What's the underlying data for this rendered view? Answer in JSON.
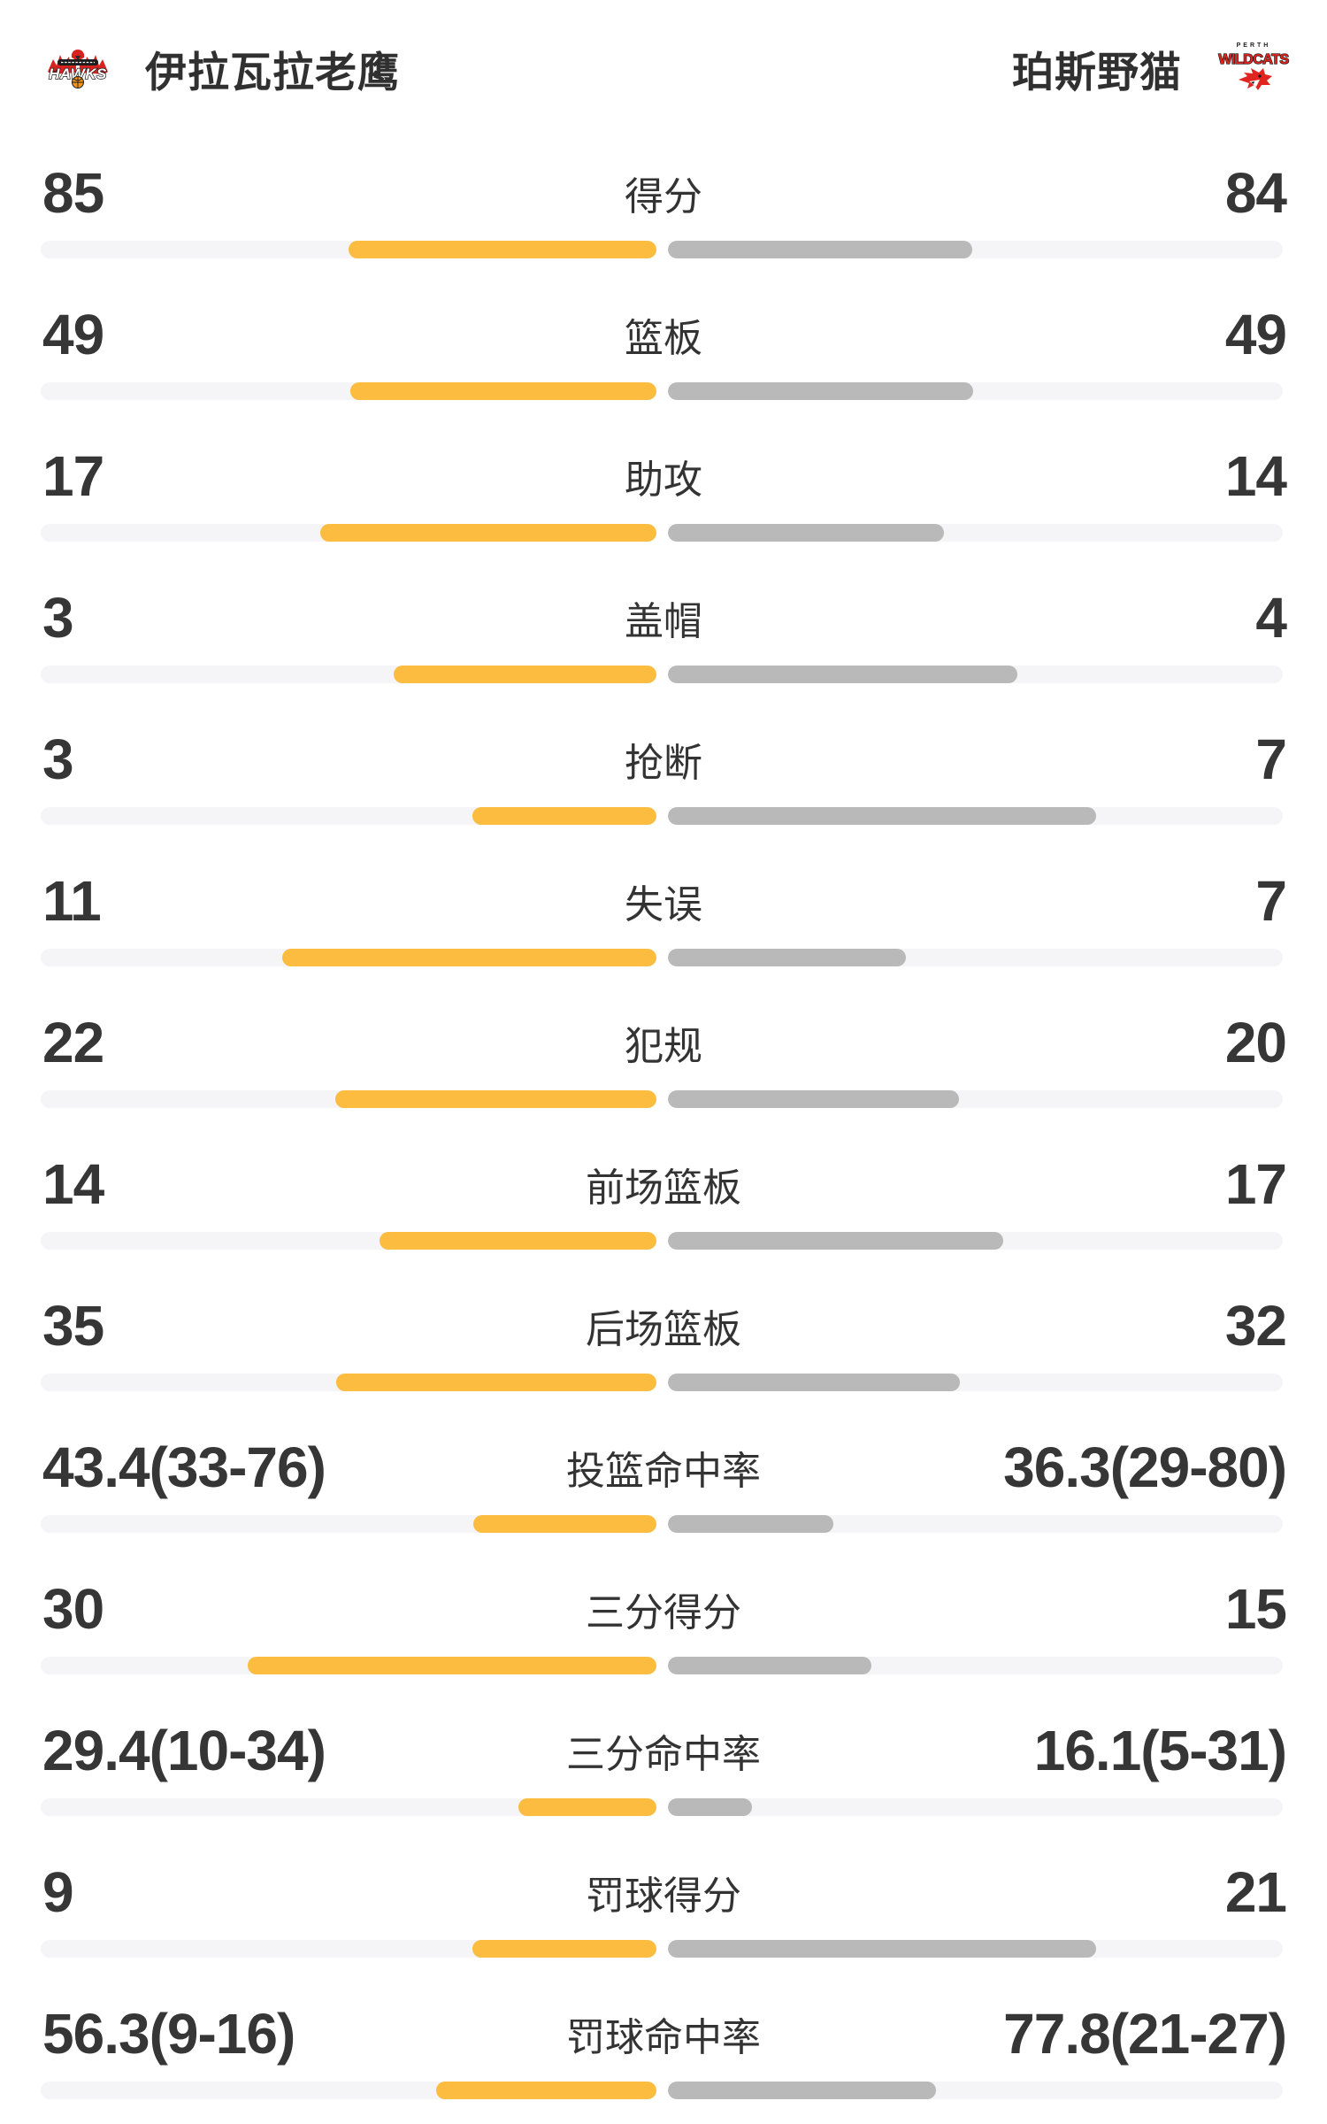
{
  "teams": {
    "home": {
      "name": "伊拉瓦拉老鹰",
      "bar_color": "#fbbc40"
    },
    "away": {
      "name": "珀斯野猫",
      "bar_color": "#b9b9b9"
    }
  },
  "logos": {
    "hawks": {
      "banner_text": "HAWKS"
    },
    "wildcats": {
      "top_text": "PERTH",
      "main_text": "WILDCATS"
    }
  },
  "colors": {
    "home_bar": "#fbbc40",
    "away_bar": "#b9b9b9",
    "bar_track": "#f5f5f7",
    "value_text": "#363636",
    "label_text": "#333333",
    "background": "#ffffff",
    "logo_red": "#dd2a26",
    "basketball_orange": "#f7941d"
  },
  "chart_data": {
    "type": "bar",
    "orientation": "horizontal-paired-comparison",
    "title": "",
    "grid": false,
    "legend_position": "top",
    "categories": [
      "得分",
      "篮板",
      "助攻",
      "盖帽",
      "抢断",
      "失误",
      "犯规",
      "前场篮板",
      "后场篮板",
      "投篮命中率",
      "三分得分",
      "三分命中率",
      "罚球得分",
      "罚球命中率"
    ],
    "series": [
      {
        "name": "伊拉瓦拉老鹰",
        "color": "#fbbc40",
        "values": [
          85,
          49,
          17,
          3,
          3,
          11,
          22,
          14,
          35,
          43.4,
          30,
          29.4,
          9,
          56.3
        ]
      },
      {
        "name": "珀斯野猫",
        "color": "#b9b9b9",
        "values": [
          84,
          49,
          14,
          4,
          7,
          7,
          20,
          17,
          32,
          36.3,
          15,
          16.1,
          21,
          77.8
        ]
      }
    ],
    "rows": [
      {
        "label": "得分",
        "home": {
          "display": "85",
          "value": 85
        },
        "away": {
          "display": "84",
          "value": 84
        },
        "bars": {
          "home_pct": 50.0,
          "away_pct": 49.5
        }
      },
      {
        "label": "篮板",
        "home": {
          "display": "49",
          "value": 49
        },
        "away": {
          "display": "49",
          "value": 49
        },
        "bars": {
          "home_pct": 49.7,
          "away_pct": 49.7
        }
      },
      {
        "label": "助攻",
        "home": {
          "display": "17",
          "value": 17
        },
        "away": {
          "display": "14",
          "value": 14
        },
        "bars": {
          "home_pct": 54.6,
          "away_pct": 45.0
        }
      },
      {
        "label": "盖帽",
        "home": {
          "display": "3",
          "value": 3
        },
        "away": {
          "display": "4",
          "value": 4
        },
        "bars": {
          "home_pct": 42.6,
          "away_pct": 56.9
        }
      },
      {
        "label": "抢断",
        "home": {
          "display": "3",
          "value": 3
        },
        "away": {
          "display": "7",
          "value": 7
        },
        "bars": {
          "home_pct": 29.9,
          "away_pct": 69.7
        }
      },
      {
        "label": "失误",
        "home": {
          "display": "11",
          "value": 11
        },
        "away": {
          "display": "7",
          "value": 7
        },
        "bars": {
          "home_pct": 60.8,
          "away_pct": 38.7
        }
      },
      {
        "label": "犯规",
        "home": {
          "display": "22",
          "value": 22
        },
        "away": {
          "display": "20",
          "value": 20
        },
        "bars": {
          "home_pct": 52.1,
          "away_pct": 47.4
        }
      },
      {
        "label": "前场篮板",
        "home": {
          "display": "14",
          "value": 14
        },
        "away": {
          "display": "17",
          "value": 17
        },
        "bars": {
          "home_pct": 44.9,
          "away_pct": 54.6
        }
      },
      {
        "label": "后场篮板",
        "home": {
          "display": "35",
          "value": 35
        },
        "away": {
          "display": "32",
          "value": 32
        },
        "bars": {
          "home_pct": 52.0,
          "away_pct": 47.5
        }
      },
      {
        "label": "投篮命中率",
        "home": {
          "display": "43.4(33-76)",
          "value": 43.4,
          "made": 33,
          "attempted": 76
        },
        "away": {
          "display": "36.3(29-80)",
          "value": 36.3,
          "made": 29,
          "attempted": 80
        },
        "bars": {
          "home_pct": 29.7,
          "away_pct": 26.9
        }
      },
      {
        "label": "三分得分",
        "home": {
          "display": "30",
          "value": 30
        },
        "away": {
          "display": "15",
          "value": 15
        },
        "bars": {
          "home_pct": 66.3,
          "away_pct": 33.2
        }
      },
      {
        "label": "三分命中率",
        "home": {
          "display": "29.4(10-34)",
          "value": 29.4,
          "made": 10,
          "attempted": 34
        },
        "away": {
          "display": "16.1(5-31)",
          "value": 16.1,
          "made": 5,
          "attempted": 31
        },
        "bars": {
          "home_pct": 22.4,
          "away_pct": 13.8
        }
      },
      {
        "label": "罚球得分",
        "home": {
          "display": "9",
          "value": 9
        },
        "away": {
          "display": "21",
          "value": 21
        },
        "bars": {
          "home_pct": 29.9,
          "away_pct": 69.7
        }
      },
      {
        "label": "罚球命中率",
        "home": {
          "display": "56.3(9-16)",
          "value": 56.3,
          "made": 9,
          "attempted": 16
        },
        "away": {
          "display": "77.8(21-27)",
          "value": 77.8,
          "made": 21,
          "attempted": 27
        },
        "bars": {
          "home_pct": 35.7,
          "away_pct": 43.7
        }
      }
    ]
  }
}
